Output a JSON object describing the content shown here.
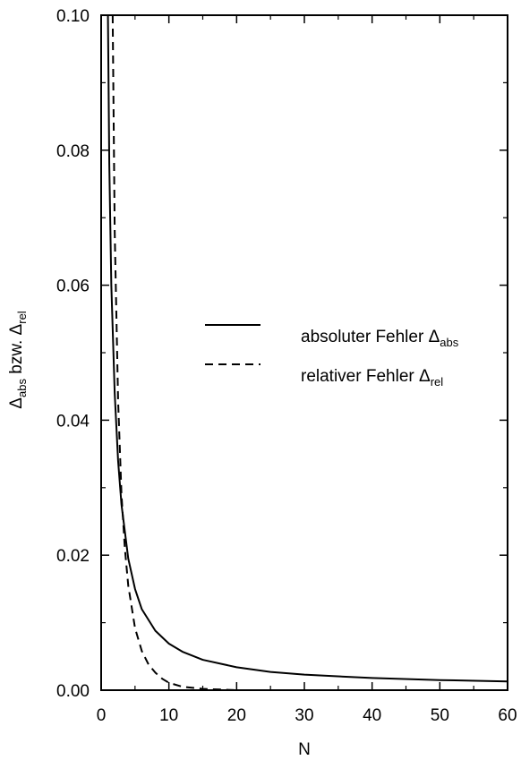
{
  "chart_data": {
    "type": "line",
    "title": "",
    "xlabel": "N",
    "ylabel": {
      "main1": "Δ",
      "sub1": "abs",
      "mid": " bzw. ",
      "main2": "Δ",
      "sub2": "rel"
    },
    "xlim": [
      0,
      60
    ],
    "ylim": [
      0,
      0.1
    ],
    "x_ticks": [
      0,
      10,
      20,
      30,
      40,
      50,
      60
    ],
    "x_tick_labels": [
      "0",
      "10",
      "20",
      "30",
      "40",
      "50",
      "60"
    ],
    "y_ticks": [
      0,
      0.02,
      0.04,
      0.06,
      0.08,
      0.1
    ],
    "y_tick_labels": [
      "0.00",
      "0.02",
      "0.04",
      "0.06",
      "0.08",
      "0.10"
    ],
    "grid": false,
    "legend_position": "center-right",
    "series": [
      {
        "name": {
          "main": "absoluter Fehler Δ",
          "sub": "abs"
        },
        "style": "solid",
        "color": "#000000",
        "x": [
          1.0,
          1.2,
          1.5,
          2,
          2.5,
          3,
          4,
          5,
          6,
          8,
          10,
          12,
          15,
          20,
          25,
          30,
          40,
          50,
          60
        ],
        "y": [
          0.1,
          0.078,
          0.06,
          0.044,
          0.034,
          0.0275,
          0.0195,
          0.015,
          0.012,
          0.0088,
          0.0069,
          0.0057,
          0.0045,
          0.0034,
          0.0027,
          0.0023,
          0.0018,
          0.0015,
          0.0013
        ]
      },
      {
        "name": {
          "main": "relativer Fehler Δ",
          "sub": "rel"
        },
        "style": "dashed",
        "color": "#000000",
        "x": [
          1.7,
          2,
          2.5,
          3,
          3.5,
          4,
          5,
          6,
          7,
          8,
          9,
          10,
          12,
          15,
          20,
          30,
          40,
          50,
          60
        ],
        "y": [
          0.1,
          0.068,
          0.043,
          0.029,
          0.021,
          0.0155,
          0.0092,
          0.0058,
          0.0038,
          0.0026,
          0.0017,
          0.0011,
          0.0005,
          0.0002,
          0.0,
          0.0,
          0.0,
          0.0,
          0.0
        ]
      }
    ]
  }
}
